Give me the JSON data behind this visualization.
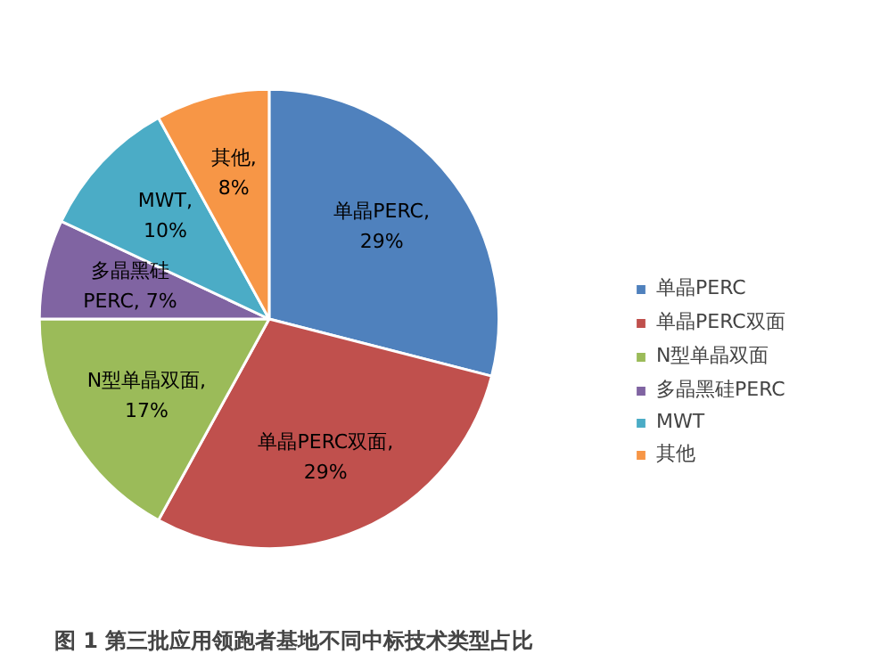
{
  "chart_data": {
    "type": "pie",
    "title": "图 1 第三批应用领跑者基地不同中标技术类型占比",
    "categories": [
      "单晶PERC",
      "单晶PERC双面",
      "N型单晶双面",
      "多晶黑硅PERC",
      "MWT",
      "其他"
    ],
    "values": [
      29,
      29,
      17,
      7,
      10,
      8
    ],
    "colors": [
      "#4f81bd",
      "#c0504d",
      "#9bbb59",
      "#8064a2",
      "#4bacc6",
      "#f79646"
    ],
    "value_labels": [
      "单晶PERC,\n29%",
      "单晶PERC双面,\n29%",
      "N型单晶双面,\n17%",
      "多晶黑硅\nPERC, 7%",
      "MWT,\n10%",
      "其他,\n8%"
    ],
    "legend": "right"
  }
}
